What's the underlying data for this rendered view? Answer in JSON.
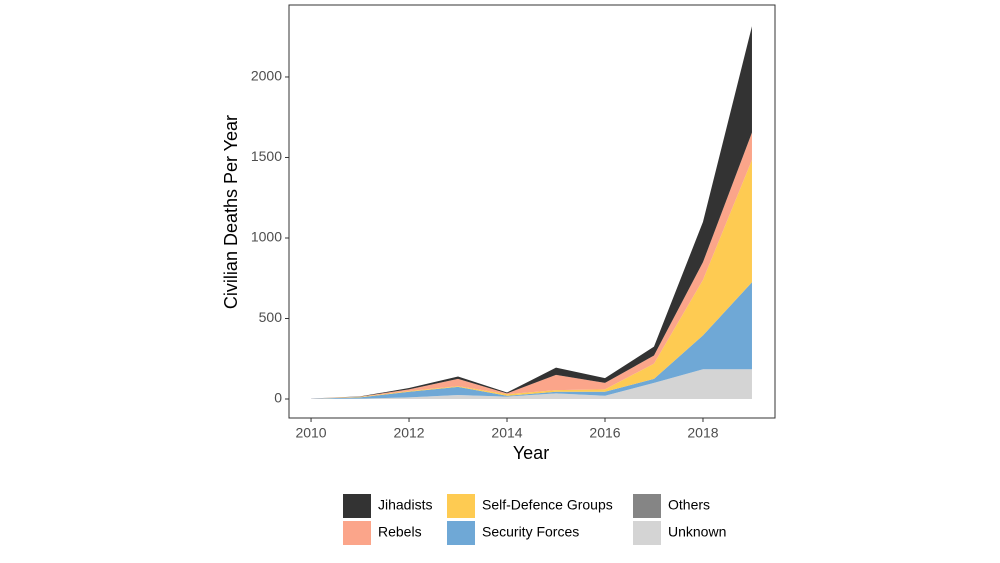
{
  "chart_data": {
    "type": "stacked_area",
    "x_label": "Year",
    "y_label": "Civilian Deaths Per Year",
    "x": [
      2010,
      2011,
      2012,
      2013,
      2014,
      2015,
      2016,
      2017,
      2018,
      2019
    ],
    "series": [
      {
        "name": "Unknown",
        "color": "#d4d4d4",
        "values": [
          1,
          2,
          10,
          25,
          15,
          35,
          20,
          100,
          185,
          185
        ]
      },
      {
        "name": "Others",
        "color": "#858585",
        "values": [
          0,
          0,
          0,
          0,
          0,
          0,
          0,
          0,
          0,
          0
        ]
      },
      {
        "name": "Security Forces",
        "color": "#6fa8d6",
        "values": [
          1,
          8,
          35,
          50,
          5,
          10,
          25,
          25,
          210,
          540
        ]
      },
      {
        "name": "Self-Defence Groups",
        "color": "#fecb52",
        "values": [
          0,
          3,
          5,
          5,
          10,
          10,
          15,
          95,
          345,
          760
        ]
      },
      {
        "name": "Rebels",
        "color": "#fba58a",
        "values": [
          1,
          2,
          10,
          45,
          5,
          95,
          40,
          50,
          110,
          170
        ]
      },
      {
        "name": "Jihadists",
        "color": "#333333",
        "values": [
          0,
          1,
          8,
          15,
          5,
          45,
          30,
          55,
          250,
          660
        ]
      }
    ],
    "legend_order": [
      5,
      4,
      3,
      2,
      1,
      0
    ],
    "xlim": [
      2009.55,
      2019.47
    ],
    "xticks": [
      2010,
      2012,
      2014,
      2016,
      2018
    ],
    "ylim": [
      -118,
      2447
    ],
    "yticks": [
      0,
      500,
      1000,
      1500,
      2000
    ],
    "grid": false
  }
}
